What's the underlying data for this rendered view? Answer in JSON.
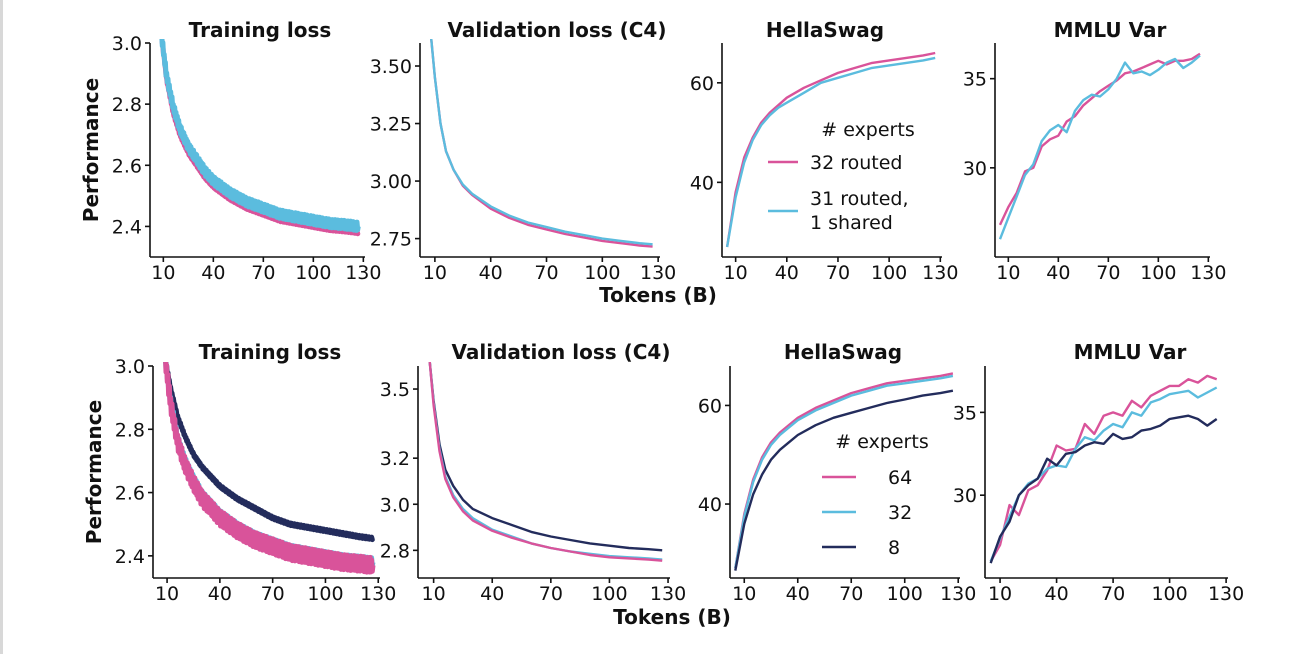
{
  "colors": {
    "pink": "#d9539a",
    "blue": "#5bbcde",
    "navy": "#232c5c"
  },
  "shared_xlabel": "Tokens (B)",
  "chart_data": [
    {
      "type": "line",
      "row": 0,
      "title": "Training loss",
      "ylabel": "Performance",
      "xlim": [
        0,
        130
      ],
      "ylim": [
        2.3,
        3.0
      ],
      "xticks": [
        10,
        40,
        70,
        100,
        130
      ],
      "yticks": [
        2.4,
        2.6,
        2.8,
        3.0
      ],
      "ytick_labels": [
        "2.4",
        "2.6",
        "2.8",
        "3.0"
      ],
      "band": true,
      "series": [
        {
          "name": "32 routed",
          "color": "pink",
          "x": [
            9,
            12,
            16,
            20,
            25,
            30,
            35,
            40,
            50,
            60,
            70,
            80,
            90,
            100,
            110,
            120,
            127
          ],
          "y": [
            3.02,
            2.88,
            2.77,
            2.7,
            2.64,
            2.6,
            2.56,
            2.53,
            2.49,
            2.46,
            2.44,
            2.42,
            2.41,
            2.4,
            2.39,
            2.385,
            2.38
          ]
        },
        {
          "name": "31 routed, 1 shared",
          "color": "blue",
          "x": [
            9,
            12,
            16,
            20,
            25,
            30,
            35,
            40,
            50,
            60,
            70,
            80,
            90,
            100,
            110,
            120,
            127
          ],
          "y": [
            3.02,
            2.89,
            2.79,
            2.72,
            2.66,
            2.62,
            2.58,
            2.55,
            2.51,
            2.48,
            2.46,
            2.44,
            2.43,
            2.42,
            2.41,
            2.405,
            2.4
          ]
        }
      ]
    },
    {
      "type": "line",
      "row": 0,
      "title": "Validation loss (C4)",
      "xlim": [
        0,
        130
      ],
      "ylim": [
        2.67,
        3.6
      ],
      "xticks": [
        10,
        40,
        70,
        100,
        130
      ],
      "yticks": [
        2.75,
        3.0,
        3.25,
        3.5
      ],
      "ytick_labels": [
        "2.75",
        "3.00",
        "3.25",
        "3.50"
      ],
      "series": [
        {
          "name": "32 routed",
          "color": "pink",
          "x": [
            8,
            10,
            13,
            16,
            20,
            25,
            30,
            40,
            50,
            60,
            70,
            80,
            90,
            100,
            110,
            120,
            127
          ],
          "y": [
            3.62,
            3.45,
            3.25,
            3.13,
            3.05,
            2.98,
            2.94,
            2.88,
            2.84,
            2.81,
            2.79,
            2.77,
            2.755,
            2.74,
            2.73,
            2.72,
            2.715
          ]
        },
        {
          "name": "31 routed, 1 shared",
          "color": "blue",
          "x": [
            8,
            10,
            13,
            16,
            20,
            25,
            30,
            40,
            50,
            60,
            70,
            80,
            90,
            100,
            110,
            120,
            127
          ],
          "y": [
            3.62,
            3.45,
            3.25,
            3.13,
            3.05,
            2.985,
            2.945,
            2.89,
            2.85,
            2.82,
            2.8,
            2.78,
            2.765,
            2.75,
            2.74,
            2.73,
            2.725
          ]
        }
      ]
    },
    {
      "type": "line",
      "row": 0,
      "title": "HellaSwag",
      "xlim": [
        0,
        130
      ],
      "ylim": [
        25,
        68
      ],
      "xticks": [
        10,
        40,
        70,
        100,
        130
      ],
      "yticks": [
        40,
        60
      ],
      "ytick_labels": [
        "40",
        "60"
      ],
      "legend": {
        "title": "# experts",
        "labels": [
          "32 routed",
          "31 routed,",
          "1 shared"
        ]
      },
      "series": [
        {
          "name": "32 routed",
          "color": "pink",
          "x": [
            5,
            10,
            15,
            20,
            25,
            30,
            35,
            40,
            50,
            60,
            70,
            80,
            90,
            100,
            110,
            120,
            127
          ],
          "y": [
            27,
            38,
            45,
            49,
            52,
            54,
            55.5,
            57,
            59,
            60.5,
            62,
            63,
            64,
            64.5,
            65,
            65.5,
            66
          ]
        },
        {
          "name": "31 routed, 1 shared",
          "color": "blue",
          "x": [
            5,
            10,
            15,
            20,
            25,
            30,
            35,
            40,
            50,
            60,
            70,
            80,
            90,
            100,
            110,
            120,
            127
          ],
          "y": [
            27,
            37,
            44,
            48.5,
            51.5,
            53.5,
            55,
            56,
            58,
            60,
            61,
            62,
            63,
            63.5,
            64,
            64.5,
            65
          ]
        }
      ]
    },
    {
      "type": "line",
      "row": 0,
      "title": "MMLU Var",
      "xlim": [
        0,
        130
      ],
      "ylim": [
        25,
        37
      ],
      "xticks": [
        10,
        40,
        70,
        100,
        130
      ],
      "yticks": [
        30,
        35
      ],
      "ytick_labels": [
        "30",
        "35"
      ],
      "series": [
        {
          "name": "32 routed",
          "color": "pink",
          "x": [
            5,
            10,
            15,
            20,
            25,
            30,
            35,
            40,
            45,
            50,
            55,
            60,
            65,
            70,
            75,
            80,
            85,
            90,
            95,
            100,
            105,
            110,
            115,
            120,
            125
          ],
          "y": [
            26.8,
            27.8,
            28.6,
            29.8,
            30.0,
            31.2,
            31.6,
            31.8,
            32.6,
            32.9,
            33.5,
            33.9,
            34.3,
            34.6,
            34.9,
            35.3,
            35.4,
            35.6,
            35.8,
            36.0,
            35.8,
            36.0,
            36.0,
            36.1,
            36.4
          ]
        },
        {
          "name": "31 routed, 1 shared",
          "color": "blue",
          "x": [
            5,
            10,
            15,
            20,
            25,
            30,
            35,
            40,
            45,
            50,
            55,
            60,
            65,
            70,
            75,
            80,
            85,
            90,
            95,
            100,
            105,
            110,
            115,
            120,
            125
          ],
          "y": [
            26.0,
            27.2,
            28.4,
            29.6,
            30.2,
            31.5,
            32.1,
            32.4,
            32.0,
            33.2,
            33.8,
            34.1,
            34.0,
            34.4,
            35.0,
            35.9,
            35.3,
            35.4,
            35.2,
            35.5,
            35.9,
            36.1,
            35.6,
            35.9,
            36.3
          ]
        }
      ]
    },
    {
      "type": "line",
      "row": 1,
      "title": "Training loss",
      "ylabel": "Performance",
      "xlim": [
        0,
        130
      ],
      "ylim": [
        2.33,
        3.0
      ],
      "xticks": [
        10,
        40,
        70,
        100,
        130
      ],
      "yticks": [
        2.4,
        2.6,
        2.8,
        3.0
      ],
      "ytick_labels": [
        "2.4",
        "2.6",
        "2.8",
        "3.0"
      ],
      "band": true,
      "series": [
        {
          "name": "8",
          "color": "navy",
          "x": [
            9,
            12,
            16,
            20,
            25,
            30,
            35,
            40,
            50,
            60,
            70,
            80,
            90,
            100,
            110,
            120,
            127
          ],
          "y": [
            3.02,
            2.93,
            2.84,
            2.78,
            2.72,
            2.68,
            2.65,
            2.62,
            2.58,
            2.55,
            2.52,
            2.5,
            2.49,
            2.48,
            2.47,
            2.46,
            2.455
          ]
        },
        {
          "name": "32",
          "color": "blue",
          "x": [
            9,
            12,
            16,
            20,
            25,
            30,
            35,
            40,
            50,
            60,
            70,
            80,
            90,
            100,
            110,
            120,
            127
          ],
          "y": [
            3.02,
            2.89,
            2.77,
            2.7,
            2.64,
            2.59,
            2.56,
            2.53,
            2.49,
            2.46,
            2.44,
            2.42,
            2.41,
            2.4,
            2.39,
            2.385,
            2.38
          ]
        },
        {
          "name": "64",
          "color": "pink",
          "x": [
            9,
            12,
            16,
            20,
            25,
            30,
            35,
            40,
            50,
            60,
            70,
            80,
            90,
            100,
            110,
            120,
            127
          ],
          "y": [
            3.02,
            2.88,
            2.76,
            2.69,
            2.63,
            2.58,
            2.55,
            2.52,
            2.48,
            2.45,
            2.43,
            2.41,
            2.4,
            2.39,
            2.38,
            2.375,
            2.37
          ]
        }
      ]
    },
    {
      "type": "line",
      "row": 1,
      "title": "Validation loss (C4)",
      "xlim": [
        0,
        130
      ],
      "ylim": [
        2.68,
        3.6
      ],
      "xticks": [
        10,
        40,
        70,
        100,
        130
      ],
      "yticks": [
        2.8,
        3.0,
        3.2,
        3.5
      ],
      "ytick_labels": [
        "2.8",
        "3.0",
        "3.2",
        "3.5"
      ],
      "series": [
        {
          "name": "8",
          "color": "navy",
          "x": [
            8,
            10,
            13,
            16,
            20,
            25,
            30,
            40,
            50,
            60,
            70,
            80,
            90,
            100,
            110,
            120,
            127
          ],
          "y": [
            3.62,
            3.45,
            3.26,
            3.15,
            3.08,
            3.02,
            2.98,
            2.94,
            2.91,
            2.88,
            2.86,
            2.845,
            2.83,
            2.82,
            2.81,
            2.805,
            2.8
          ]
        },
        {
          "name": "32",
          "color": "blue",
          "x": [
            8,
            10,
            13,
            16,
            20,
            25,
            30,
            40,
            50,
            60,
            70,
            80,
            90,
            100,
            110,
            120,
            127
          ],
          "y": [
            3.62,
            3.44,
            3.24,
            3.12,
            3.04,
            2.98,
            2.94,
            2.89,
            2.86,
            2.83,
            2.81,
            2.795,
            2.785,
            2.775,
            2.77,
            2.765,
            2.76
          ]
        },
        {
          "name": "64",
          "color": "pink",
          "x": [
            8,
            10,
            13,
            16,
            20,
            25,
            30,
            40,
            50,
            60,
            70,
            80,
            90,
            100,
            110,
            120,
            127
          ],
          "y": [
            3.62,
            3.43,
            3.23,
            3.11,
            3.03,
            2.97,
            2.93,
            2.885,
            2.855,
            2.83,
            2.81,
            2.795,
            2.78,
            2.77,
            2.765,
            2.76,
            2.755
          ]
        }
      ]
    },
    {
      "type": "line",
      "row": 1,
      "title": "HellaSwag",
      "xlim": [
        0,
        130
      ],
      "ylim": [
        25,
        68
      ],
      "xticks": [
        10,
        40,
        70,
        100,
        130
      ],
      "yticks": [
        40,
        60
      ],
      "ytick_labels": [
        "40",
        "60"
      ],
      "legend": {
        "title": "# experts",
        "labels": [
          "64",
          "32",
          "8"
        ]
      },
      "series": [
        {
          "name": "64",
          "color": "pink",
          "x": [
            5,
            10,
            15,
            20,
            25,
            30,
            35,
            40,
            50,
            60,
            70,
            80,
            90,
            100,
            110,
            120,
            127
          ],
          "y": [
            27,
            38,
            45,
            49.5,
            52.5,
            54.5,
            56,
            57.5,
            59.5,
            61,
            62.5,
            63.5,
            64.5,
            65,
            65.5,
            66,
            66.5
          ]
        },
        {
          "name": "32",
          "color": "blue",
          "x": [
            5,
            10,
            15,
            20,
            25,
            30,
            35,
            40,
            50,
            60,
            70,
            80,
            90,
            100,
            110,
            120,
            127
          ],
          "y": [
            27,
            37.5,
            44.5,
            49,
            52,
            54,
            55.5,
            57,
            59,
            60.5,
            62,
            63,
            64,
            64.5,
            65,
            65.5,
            66
          ]
        },
        {
          "name": "8",
          "color": "navy",
          "x": [
            5,
            10,
            15,
            20,
            25,
            30,
            35,
            40,
            50,
            60,
            70,
            80,
            90,
            100,
            110,
            120,
            127
          ],
          "y": [
            26.5,
            36,
            42,
            46,
            49,
            51,
            52.5,
            54,
            56,
            57.5,
            58.5,
            59.5,
            60.5,
            61.2,
            62,
            62.5,
            63
          ]
        }
      ]
    },
    {
      "type": "line",
      "row": 1,
      "title": "MMLU Var",
      "xlim": [
        0,
        130
      ],
      "ylim": [
        25,
        37.8
      ],
      "xticks": [
        10,
        40,
        70,
        100,
        130
      ],
      "yticks": [
        30,
        35
      ],
      "ytick_labels": [
        "30",
        "35"
      ],
      "series": [
        {
          "name": "64",
          "color": "pink",
          "x": [
            5,
            10,
            15,
            20,
            25,
            30,
            35,
            40,
            45,
            50,
            55,
            60,
            65,
            70,
            75,
            80,
            85,
            90,
            95,
            100,
            105,
            110,
            115,
            120,
            125
          ],
          "y": [
            26.0,
            27.0,
            29.4,
            28.8,
            30.3,
            30.6,
            31.5,
            33.0,
            32.7,
            32.8,
            34.3,
            33.7,
            34.8,
            35.0,
            34.8,
            35.7,
            35.3,
            36.0,
            36.3,
            36.6,
            36.6,
            37.0,
            36.8,
            37.2,
            37.0
          ]
        },
        {
          "name": "32",
          "color": "blue",
          "x": [
            5,
            10,
            15,
            20,
            25,
            30,
            35,
            40,
            45,
            50,
            55,
            60,
            65,
            70,
            75,
            80,
            85,
            90,
            95,
            100,
            105,
            110,
            115,
            120,
            125
          ],
          "y": [
            26.0,
            27.4,
            28.7,
            30.0,
            30.7,
            31.0,
            31.6,
            31.8,
            31.7,
            32.8,
            33.5,
            33.3,
            33.9,
            34.3,
            34.1,
            35.0,
            34.8,
            35.6,
            35.8,
            36.1,
            36.2,
            36.3,
            35.9,
            36.2,
            36.5
          ]
        },
        {
          "name": "8",
          "color": "navy",
          "x": [
            5,
            10,
            15,
            20,
            25,
            30,
            35,
            40,
            45,
            50,
            55,
            60,
            65,
            70,
            75,
            80,
            85,
            90,
            95,
            100,
            105,
            110,
            115,
            120,
            125
          ],
          "y": [
            25.9,
            27.5,
            28.4,
            30.0,
            30.6,
            31.0,
            32.2,
            31.8,
            32.5,
            32.6,
            33.0,
            33.2,
            33.1,
            33.7,
            33.4,
            33.5,
            33.9,
            34.0,
            34.2,
            34.6,
            34.7,
            34.8,
            34.6,
            34.2,
            34.6
          ]
        }
      ]
    }
  ]
}
